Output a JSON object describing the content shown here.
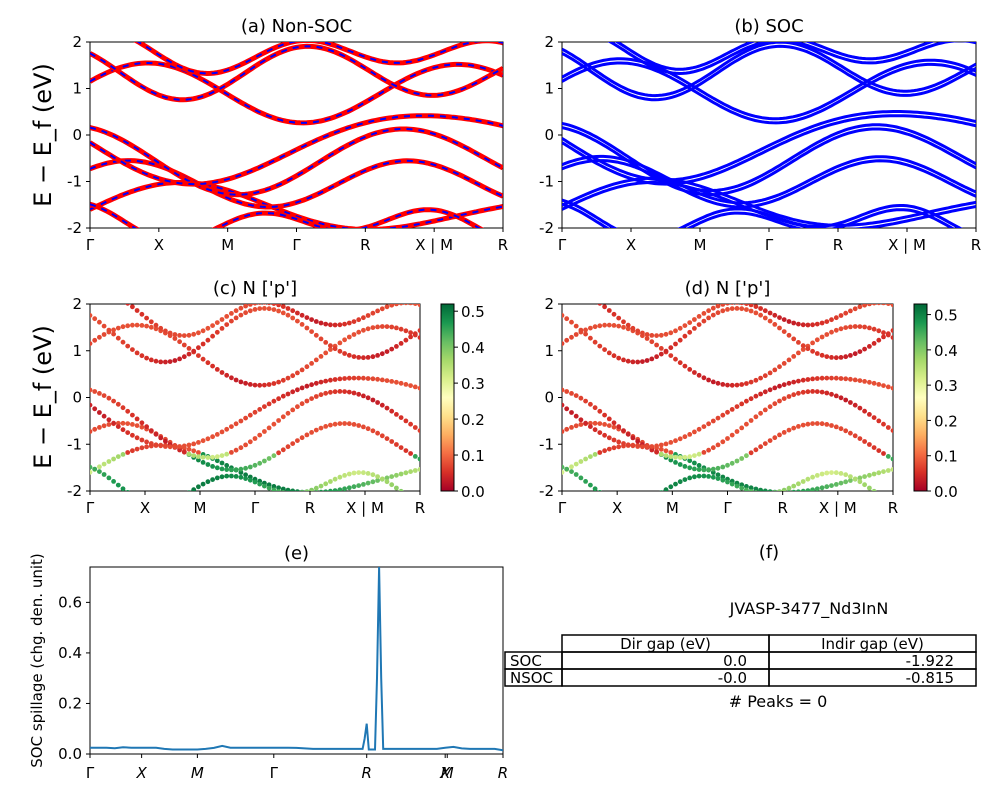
{
  "figure": {
    "ylabel_energy": "E − E_f (eV)",
    "colormap": [
      "#a50026",
      "#d73027",
      "#f46d43",
      "#fdae61",
      "#fee08b",
      "#ffffbf",
      "#d9ef8b",
      "#a6d96a",
      "#66bd63",
      "#1a9850",
      "#006837"
    ]
  },
  "chart_data": [
    {
      "id": "a",
      "type": "line",
      "title": "(a) Non-SOC",
      "ylim": [
        -2,
        2
      ],
      "yticks": [
        "-2",
        "-1",
        "0",
        "1",
        "2"
      ],
      "xticks": [
        "Γ",
        "X",
        "M",
        "Γ",
        "R",
        "X | M",
        "R"
      ],
      "series_colors": [
        "#ff0000",
        "#0000ff"
      ]
    },
    {
      "id": "b",
      "type": "line",
      "title": "(b) SOC",
      "ylim": [
        -2,
        2
      ],
      "yticks": [
        "-2",
        "-1",
        "0",
        "1",
        "2"
      ],
      "xticks": [
        "Γ",
        "X",
        "M",
        "Γ",
        "R",
        "X | M",
        "R"
      ],
      "series_colors": [
        "#0000ff"
      ]
    },
    {
      "id": "c",
      "type": "scatter",
      "title": "(c)  N ['p']",
      "ylim": [
        -2,
        2
      ],
      "yticks": [
        "-2",
        "-1",
        "0",
        "1",
        "2"
      ],
      "xticks": [
        "Γ",
        "X",
        "M",
        "Γ",
        "R",
        "X | M",
        "R"
      ],
      "colorbar": {
        "range": [
          0,
          0.52
        ],
        "ticks": [
          "0.0",
          "0.1",
          "0.2",
          "0.3",
          "0.4",
          "0.5"
        ]
      }
    },
    {
      "id": "d",
      "type": "scatter",
      "title": "(d) N ['p']",
      "ylim": [
        -2,
        2
      ],
      "yticks": [
        "-2",
        "-1",
        "0",
        "1",
        "2"
      ],
      "xticks": [
        "Γ",
        "X",
        "M",
        "Γ",
        "R",
        "X | M",
        "R"
      ],
      "colorbar": {
        "range": [
          0,
          0.53
        ],
        "ticks": [
          "0.0",
          "0.1",
          "0.2",
          "0.3",
          "0.4",
          "0.5"
        ]
      }
    },
    {
      "id": "e",
      "type": "line",
      "title": "(e)",
      "ylabel": "SOC spillage (chg. den. unit)",
      "ylim": [
        0,
        0.74
      ],
      "yticks": [
        "0.0",
        "0.2",
        "0.4",
        "0.6"
      ],
      "xticks": [
        "Γ",
        "X",
        "M",
        "Γ",
        "R",
        "X",
        "M",
        "R"
      ],
      "x": [
        0,
        0.02,
        0.04,
        0.06,
        0.08,
        0.1,
        0.12,
        0.14,
        0.16,
        0.18,
        0.2,
        0.22,
        0.24,
        0.26,
        0.28,
        0.3,
        0.32,
        0.34,
        0.36,
        0.38,
        0.4,
        0.42,
        0.44,
        0.46,
        0.48,
        0.5,
        0.52,
        0.54,
        0.56,
        0.58,
        0.6,
        0.62,
        0.64,
        0.66,
        0.665,
        0.67,
        0.675,
        0.69,
        0.695,
        0.7,
        0.705,
        0.71,
        0.72,
        0.74,
        0.76,
        0.78,
        0.8,
        0.82,
        0.84,
        0.86,
        0.88,
        0.9,
        0.92,
        0.94,
        0.96,
        0.98,
        1.0
      ],
      "values": [
        0.025,
        0.025,
        0.025,
        0.023,
        0.027,
        0.025,
        0.025,
        0.025,
        0.025,
        0.02,
        0.018,
        0.018,
        0.018,
        0.018,
        0.02,
        0.024,
        0.032,
        0.025,
        0.025,
        0.025,
        0.025,
        0.025,
        0.025,
        0.025,
        0.025,
        0.024,
        0.022,
        0.02,
        0.02,
        0.02,
        0.02,
        0.02,
        0.02,
        0.02,
        0.06,
        0.12,
        0.018,
        0.018,
        0.3,
        0.74,
        0.3,
        0.02,
        0.02,
        0.02,
        0.02,
        0.02,
        0.02,
        0.02,
        0.02,
        0.025,
        0.028,
        0.022,
        0.02,
        0.02,
        0.02,
        0.02,
        0.015
      ]
    },
    {
      "id": "f",
      "type": "table",
      "title": "(f)",
      "subtitle": "JVASP-3477_Nd3InN",
      "columns": [
        "",
        "Dir gap (eV)",
        "Indir gap (eV)"
      ],
      "rows": [
        [
          "SOC",
          "0.0",
          "-1.922"
        ],
        [
          "NSOC",
          "-0.0",
          "-0.815"
        ]
      ],
      "footer": "# Peaks = 0"
    }
  ]
}
